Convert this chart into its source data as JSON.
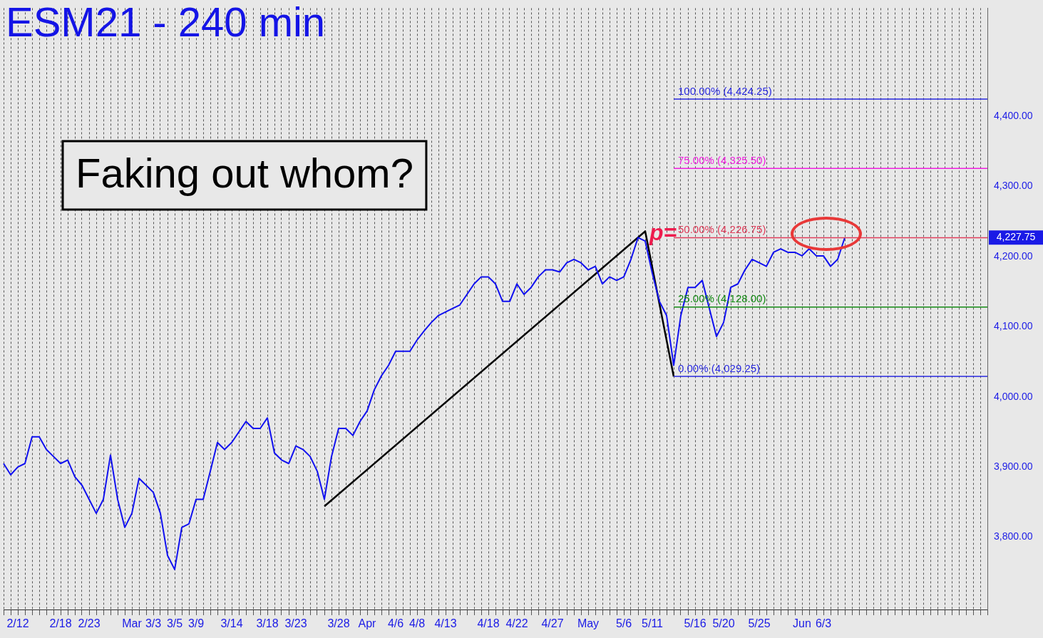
{
  "chart_data": {
    "type": "line",
    "title": "ESM21 - 240 min",
    "categories": [
      null,
      null,
      "2/12",
      null,
      null,
      null,
      null,
      null,
      "2/18",
      null,
      null,
      null,
      "2/23",
      null,
      null,
      null,
      null,
      null,
      "Mar",
      null,
      null,
      "3/3",
      null,
      null,
      "3/5",
      null,
      null,
      "3/9",
      null,
      null,
      null,
      null,
      "3/14",
      null,
      null,
      null,
      null,
      "3/18",
      null,
      null,
      null,
      "3/23",
      null,
      null,
      null,
      null,
      null,
      "3/28",
      null,
      null,
      null,
      "Apr",
      null,
      null,
      null,
      "4/6",
      null,
      null,
      "4/8",
      null,
      null,
      null,
      "4/13",
      null,
      null,
      null,
      null,
      null,
      "4/18",
      null,
      null,
      null,
      "4/22",
      null,
      null,
      null,
      null,
      "4/27",
      null,
      null,
      null,
      null,
      "May",
      null,
      null,
      null,
      null,
      "5/6",
      null,
      null,
      null,
      "5/11",
      null,
      null,
      null,
      null,
      null,
      "5/16",
      null,
      null,
      null,
      "5/20",
      null,
      null,
      null,
      null,
      "5/25",
      null,
      null,
      null,
      null,
      null,
      "Jun",
      null,
      null,
      "6/3",
      null,
      null,
      null,
      null,
      null,
      null,
      null,
      null,
      null,
      null,
      null,
      null,
      null,
      null,
      null,
      null,
      null,
      null,
      null,
      null,
      null,
      null,
      null
    ],
    "series": [
      {
        "color": "#1010f0",
        "values": [
          3905,
          3889,
          3900,
          3905,
          3943,
          3943,
          3925,
          3915,
          3905,
          3910,
          3886,
          3874,
          3854,
          3834,
          3854,
          3917,
          3854,
          3814,
          3834,
          3884,
          3874,
          3864,
          3834,
          3774,
          3754,
          3814,
          3819,
          3854,
          3854,
          3894,
          3935,
          3925,
          3935,
          3950,
          3965,
          3955,
          3955,
          3970,
          3920,
          3910,
          3905,
          3930,
          3925,
          3915,
          3894,
          3854,
          3915,
          3955,
          3955,
          3945,
          3965,
          3980,
          4010,
          4030,
          4045,
          4065,
          4065,
          4065,
          4081,
          4094,
          4106,
          4116,
          4121,
          4126,
          4131,
          4146,
          4161,
          4171,
          4171,
          4161,
          4136,
          4136,
          4161,
          4146,
          4156,
          4171,
          4181,
          4181,
          4178,
          4191,
          4196,
          4191,
          4181,
          4186,
          4161,
          4171,
          4166,
          4171,
          4196,
          4227,
          4222,
          4176,
          4136,
          4116,
          4045,
          4116,
          4156,
          4156,
          4166,
          4126,
          4086,
          4106,
          4156,
          4161,
          4181,
          4196,
          4191,
          4186,
          4206,
          4211,
          4206,
          4206,
          4201,
          4211,
          4201,
          4201,
          4186,
          4196,
          4227,
          null,
          null,
          null,
          null,
          null,
          null,
          null,
          null,
          null,
          null,
          null,
          null,
          null,
          null,
          null,
          null,
          null,
          null,
          null,
          null
        ]
      },
      {
        "color": "#000000",
        "values": [
          null,
          null,
          null,
          null,
          null,
          null,
          null,
          null,
          null,
          null,
          null,
          null,
          null,
          null,
          null,
          null,
          null,
          null,
          null,
          null,
          null,
          null,
          null,
          null,
          null,
          null,
          null,
          null,
          null,
          null,
          null,
          null,
          null,
          null,
          null,
          null,
          null,
          null,
          null,
          null,
          null,
          null,
          null,
          null,
          null,
          3844,
          null,
          null,
          null,
          null,
          null,
          null,
          null,
          null,
          null,
          null,
          null,
          null,
          null,
          null,
          null,
          null,
          null,
          null,
          null,
          null,
          null,
          null,
          null,
          null,
          null,
          null,
          null,
          null,
          null,
          null,
          null,
          null,
          null,
          null,
          null,
          null,
          null,
          null,
          null,
          null,
          null,
          null,
          null,
          null,
          4236,
          null,
          null,
          null,
          4029,
          null,
          null,
          null,
          null,
          null,
          null,
          null,
          null,
          null,
          null,
          null,
          null,
          null,
          null,
          null,
          null,
          null,
          null,
          null,
          null,
          null,
          null,
          null,
          null,
          null,
          null,
          null,
          null,
          null,
          null,
          null,
          null,
          null,
          null,
          null,
          null,
          null,
          null,
          null,
          null,
          null,
          null,
          null,
          null
        ]
      }
    ],
    "ylim": [
      3697,
      4554
    ],
    "yticks": [
      {
        "value": 3800,
        "label": "3,800.00"
      },
      {
        "value": 3900,
        "label": "3,900.00"
      },
      {
        "value": 4000,
        "label": "4,000.00"
      },
      {
        "value": 4100,
        "label": "4,100.00"
      },
      {
        "value": 4200,
        "label": "4,200.00"
      },
      {
        "value": 4300,
        "label": "4,300.00"
      },
      {
        "value": 4400,
        "label": "4,400.00"
      }
    ],
    "grid": "x",
    "marker": "none",
    "ref_lines": [
      {
        "axis": "y",
        "value": 4424.25,
        "label": "100.00% (4,424.25)",
        "color": "#2a2ae0"
      },
      {
        "axis": "y",
        "value": 4325.5,
        "label": "75.00% (4,325.50)",
        "color": "#f020e0"
      },
      {
        "axis": "y",
        "value": 4226.75,
        "label": "50.00% (4,226.75)",
        "color": "#e03c5a"
      },
      {
        "axis": "y",
        "value": 4128,
        "label": "25.00% (4,128.00)",
        "color": "#138a13"
      },
      {
        "axis": "y",
        "value": 4029.25,
        "label": "0.00% (4,029.25)",
        "color": "#2a2ae0"
      }
    ],
    "annotations": [
      "Faking out whom?",
      "p=",
      "4,227.75"
    ]
  }
}
